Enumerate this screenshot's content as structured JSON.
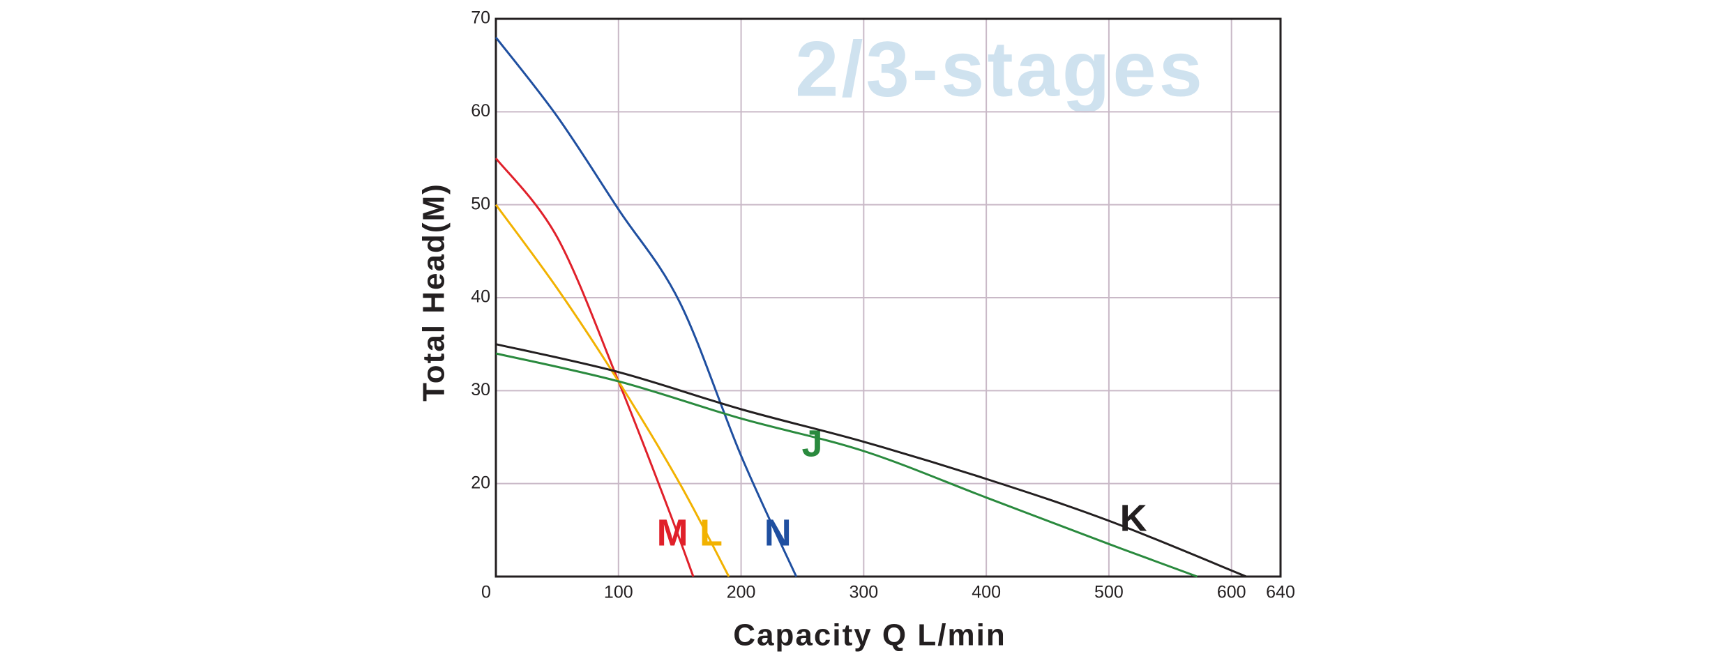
{
  "chart_data": {
    "type": "line",
    "watermark": "2/3-stages",
    "x_label": "Capacity   Q  L/min",
    "y_label": "Total  Head(M)",
    "xlim": [
      0,
      640
    ],
    "xticks": [
      0,
      100,
      200,
      300,
      400,
      500,
      600,
      640
    ],
    "ylim": [
      10,
      70
    ],
    "yticks": [
      20,
      30,
      40,
      50,
      60,
      70
    ],
    "grid": true,
    "grid_color": "#c9b9c7",
    "series": [
      {
        "name": "M",
        "color": "#e0202a",
        "x": [
          0,
          50,
          100,
          140,
          161
        ],
        "values": [
          55,
          46.5,
          31,
          17.5,
          10
        ]
      },
      {
        "name": "L",
        "color": "#f2b200",
        "x": [
          0,
          50,
          100,
          150,
          190
        ],
        "values": [
          50,
          41,
          31,
          20,
          10
        ]
      },
      {
        "name": "N",
        "color": "#1f4fa0",
        "x": [
          0,
          50,
          100,
          150,
          200,
          245
        ],
        "values": [
          68,
          59.5,
          49.5,
          39.5,
          23,
          10
        ]
      },
      {
        "name": "J",
        "color": "#2a8a3e",
        "x": [
          0,
          100,
          200,
          300,
          400,
          500,
          572
        ],
        "values": [
          34,
          31,
          27,
          23.5,
          18.5,
          13.5,
          10
        ]
      },
      {
        "name": "K",
        "color": "#231f20",
        "x": [
          0,
          100,
          200,
          300,
          400,
          500,
          612
        ],
        "values": [
          35,
          32,
          28,
          24.5,
          20.5,
          16,
          10
        ]
      }
    ]
  }
}
